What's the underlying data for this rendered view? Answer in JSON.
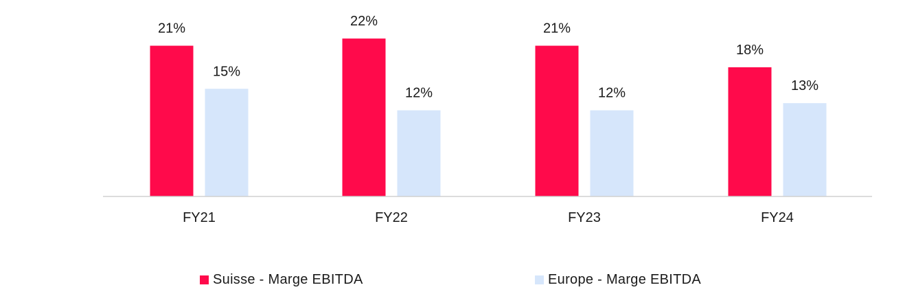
{
  "chart_data": {
    "type": "bar",
    "categories": [
      "FY21",
      "FY22",
      "FY23",
      "FY24"
    ],
    "series": [
      {
        "name": "Suisse - Marge EBITDA",
        "values": [
          21,
          22,
          21,
          18
        ],
        "labels": [
          "21%",
          "22%",
          "21%",
          "18%"
        ],
        "color": "#ff0a4b"
      },
      {
        "name": "Europe - Marge EBITDA",
        "values": [
          15,
          12,
          12,
          13
        ],
        "labels": [
          "15%",
          "12%",
          "12%",
          "13%"
        ],
        "color": "#d6e6fb"
      }
    ],
    "ylim": [
      0,
      22
    ],
    "grid": false,
    "legend_position": "bottom"
  }
}
